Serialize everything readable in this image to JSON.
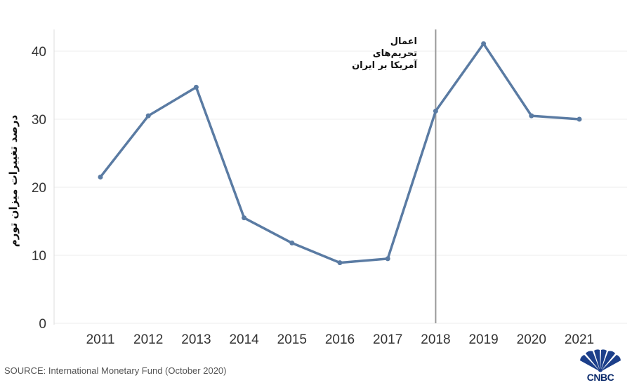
{
  "chart_data": {
    "type": "line",
    "title": "",
    "xlabel": "",
    "ylabel": "درصد تغییرات میزان تورم",
    "categories": [
      "2011",
      "2012",
      "2013",
      "2014",
      "2015",
      "2016",
      "2017",
      "2018",
      "2019",
      "2020",
      "2021"
    ],
    "series": [
      {
        "values": [
          21.5,
          30.5,
          34.7,
          15.5,
          11.8,
          8.9,
          9.5,
          31.2,
          41.1,
          30.5,
          30.0
        ]
      }
    ],
    "ylim": [
      0,
      42
    ],
    "yticks": [
      "0",
      "10",
      "20",
      "30",
      "40"
    ],
    "grid": true,
    "line_color": "#5a7ba3",
    "marker_line": {
      "category": "2018",
      "color": "#999999"
    },
    "annotation": [
      "اعمال",
      "تحریم‌های",
      "آمریکا بر ایران"
    ]
  },
  "source": "SOURCE: International Monetary Fund (October 2020)",
  "logo": {
    "text": "CNBC",
    "icon": "nbc-peacock-icon"
  }
}
